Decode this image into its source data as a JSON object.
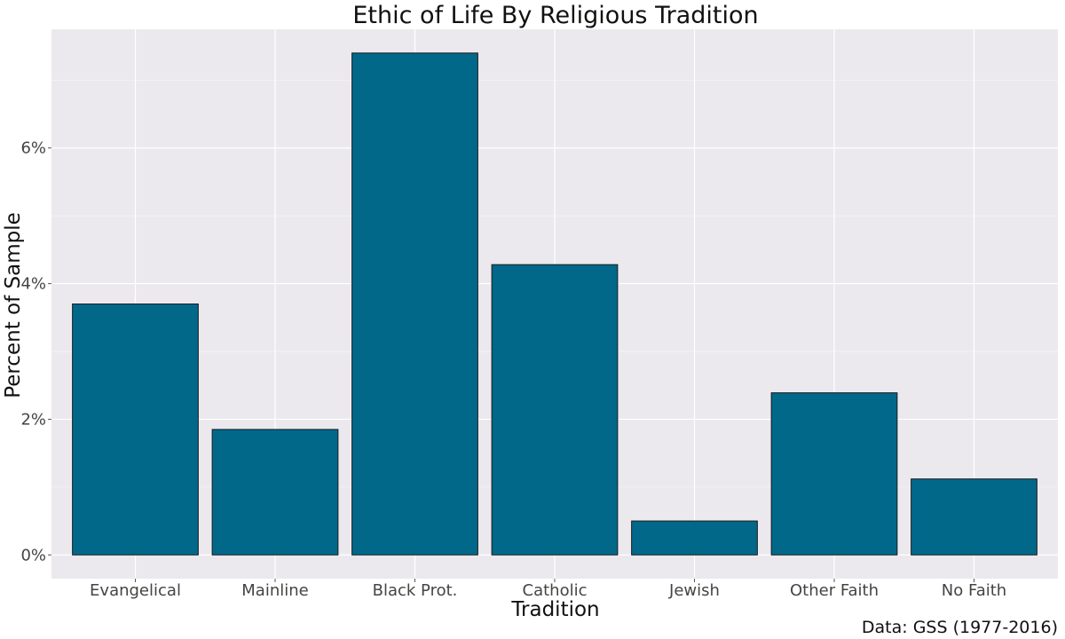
{
  "chart_data": {
    "type": "bar",
    "title": "Ethic of Life By Religious Tradition",
    "xlabel": "Tradition",
    "ylabel": "Percent of Sample",
    "caption": "Data: GSS (1977-2016)",
    "categories": [
      "Evangelical",
      "Mainline",
      "Black Prot.",
      "Catholic",
      "Jewish",
      "Other Faith",
      "No Faith"
    ],
    "values": [
      3.7,
      1.85,
      7.4,
      4.28,
      0.5,
      2.39,
      1.12
    ],
    "y_unit": "%",
    "ylim": [
      -0.35,
      7.75
    ],
    "yticks": [
      0,
      2,
      4,
      6
    ],
    "ytick_labels": [
      "0%",
      "2%",
      "4%",
      "6%"
    ],
    "grid": true,
    "colors": {
      "bar_fill": "#02688a",
      "bar_stroke": "#1a1a1a",
      "panel_background": "#ebe9ee",
      "grid": "#ffffff"
    }
  }
}
